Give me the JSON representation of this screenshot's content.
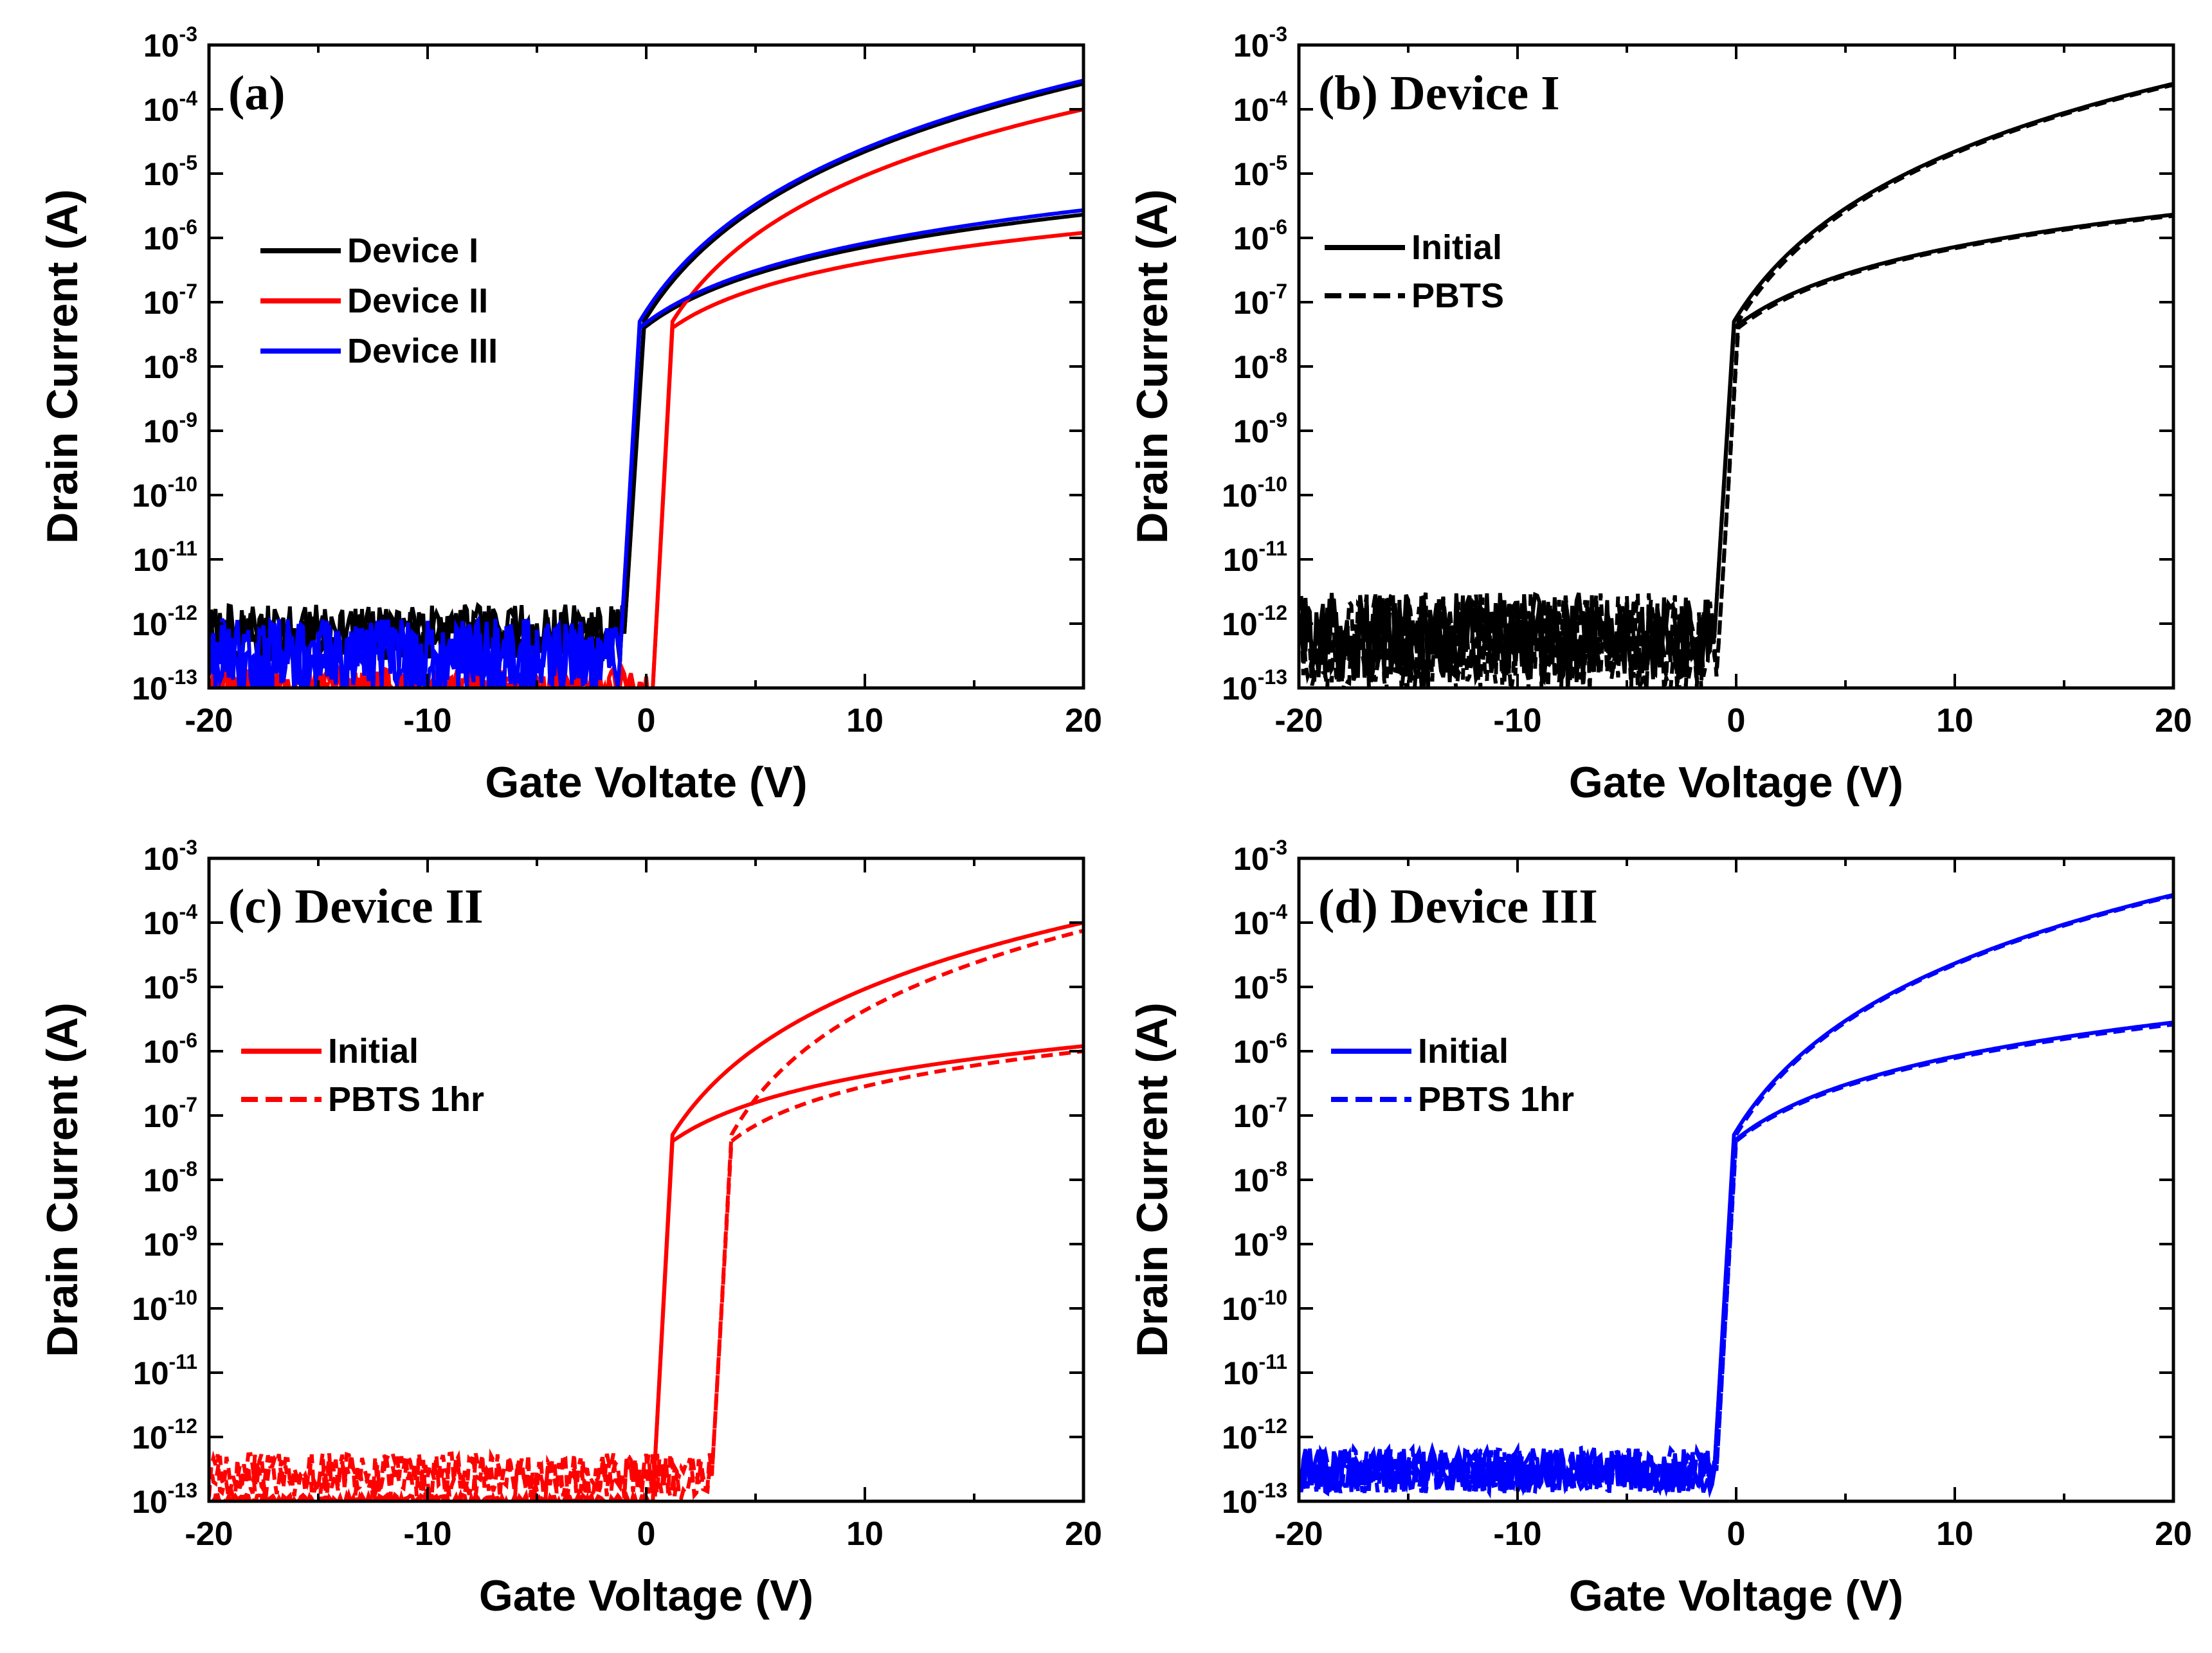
{
  "figure": {
    "description_free": true
  },
  "colors": {
    "black": "#000000",
    "red": "#ff0000",
    "blue": "#0000ff"
  },
  "chart_data": [
    {
      "type": "line",
      "panel": "(a)",
      "title": "(a)",
      "xlabel": "Gate Voltate (V)",
      "ylabel": "Drain Current (A)",
      "xlim": [
        -20,
        20
      ],
      "ylim_exponents": [
        -13,
        -3
      ],
      "yscale": "log",
      "x_ticks": [
        "-20",
        "-10",
        "0",
        "10",
        "20"
      ],
      "legend_position": "upper-left",
      "legend": [
        "Device I",
        "Device II",
        "Device III"
      ],
      "series": [
        {
          "name": "Device I",
          "color": "#000000",
          "dash": "solid",
          "vth": -1.0,
          "ion_high": 0.00025,
          "ion_low": 2.3e-06,
          "off": 7e-13,
          "noise": 0.45
        },
        {
          "name": "Device II",
          "color": "#ff0000",
          "dash": "solid",
          "vth": 0.3,
          "ion_high": 0.0001,
          "ion_low": 1.2e-06,
          "off": 1e-13,
          "noise": 0.3
        },
        {
          "name": "Device III",
          "color": "#0000ff",
          "dash": "solid",
          "vth": -1.2,
          "ion_high": 0.00028,
          "ion_low": 2.7e-06,
          "off": 3e-13,
          "noise": 0.6
        }
      ]
    },
    {
      "type": "line",
      "panel": "(b)",
      "title": "(b) Device I",
      "xlabel": "Gate Voltage (V)",
      "ylabel": "Drain Current (A)",
      "xlim": [
        -20,
        20
      ],
      "ylim_exponents": [
        -13,
        -3
      ],
      "yscale": "log",
      "x_ticks": [
        "-20",
        "-10",
        "0",
        "10",
        "20"
      ],
      "legend_position": "upper-left",
      "legend": [
        "Initial",
        "PBTS"
      ],
      "series": [
        {
          "name": "Initial",
          "color": "#000000",
          "dash": "solid",
          "vth": -1.0,
          "ion_high": 0.00025,
          "ion_low": 2.3e-06,
          "off": 6e-13,
          "noise": 0.7
        },
        {
          "name": "PBTS",
          "color": "#000000",
          "dash": "dashed",
          "vth": -0.8,
          "ion_high": 0.00024,
          "ion_low": 2.2e-06,
          "off": 5e-13,
          "noise": 0.8
        }
      ]
    },
    {
      "type": "line",
      "panel": "(c)",
      "title": "(c) Device II",
      "xlabel": "Gate Voltage (V)",
      "ylabel": "Drain Current (A)",
      "xlim": [
        -20,
        20
      ],
      "ylim_exponents": [
        -13,
        -3
      ],
      "yscale": "log",
      "x_ticks": [
        "-20",
        "-10",
        "0",
        "10",
        "20"
      ],
      "legend_position": "upper-left",
      "legend": [
        "Initial",
        "PBTS 1hr"
      ],
      "series": [
        {
          "name": "Initial",
          "color": "#ff0000",
          "dash": "solid",
          "vth": 0.3,
          "ion_high": 0.0001,
          "ion_low": 1.2e-06,
          "off": 1e-13,
          "noise": 0.1
        },
        {
          "name": "PBTS 1hr",
          "color": "#ff0000",
          "dash": "dashed",
          "vth": 3.0,
          "ion_high": 7.5e-05,
          "ion_low": 1e-06,
          "off": 2.5e-13,
          "noise": 0.35
        }
      ]
    },
    {
      "type": "line",
      "panel": "(d)",
      "title": "(d) Device III",
      "xlabel": "Gate Voltage (V)",
      "ylabel": "Drain Current (A)",
      "xlim": [
        -20,
        20
      ],
      "ylim_exponents": [
        -13,
        -3
      ],
      "yscale": "log",
      "x_ticks": [
        "-20",
        "-10",
        "0",
        "10",
        "20"
      ],
      "legend_position": "upper-left",
      "legend": [
        "Initial",
        "PBTS 1hr"
      ],
      "series": [
        {
          "name": "Initial",
          "color": "#0000ff",
          "dash": "solid",
          "vth": -1.0,
          "ion_high": 0.00027,
          "ion_low": 2.8e-06,
          "off": 3e-13,
          "noise": 0.35
        },
        {
          "name": "PBTS 1hr",
          "color": "#0000ff",
          "dash": "dashed",
          "vth": -0.9,
          "ion_high": 0.00026,
          "ion_low": 2.6e-06,
          "off": 3e-13,
          "noise": 0.35
        }
      ]
    }
  ]
}
